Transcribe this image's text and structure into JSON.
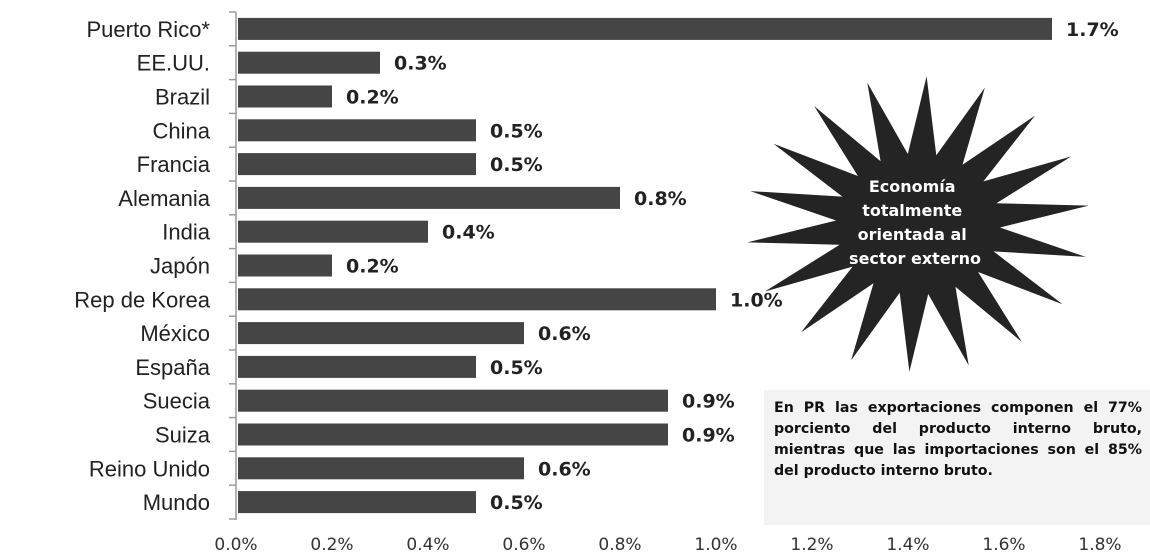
{
  "chart_data": {
    "type": "bar",
    "orientation": "horizontal",
    "categories": [
      "Puerto Rico*",
      "EE.UU.",
      "Brazil",
      "China",
      "Francia",
      "Alemania",
      "India",
      "Japón",
      "Rep de Korea",
      "México",
      "España",
      "Suecia",
      "Suiza",
      "Reino Unido",
      "Mundo"
    ],
    "values": [
      1.7,
      0.3,
      0.2,
      0.5,
      0.5,
      0.8,
      0.4,
      0.2,
      1.0,
      0.6,
      0.5,
      0.9,
      0.9,
      0.6,
      0.5
    ],
    "value_labels": [
      "1.7%",
      "0.3%",
      "0.2%",
      "0.5%",
      "0.5%",
      "0.8%",
      "0.4%",
      "0.2%",
      "1.0%",
      "0.6%",
      "0.5%",
      "0.9%",
      "0.9%",
      "0.6%",
      "0.5%"
    ],
    "xlim": [
      0,
      1.8
    ],
    "x_ticks": [
      "0.0%",
      "0.2%",
      "0.4%",
      "0.6%",
      "0.8%",
      "1.0%",
      "1.2%",
      "1.4%",
      "1.6%",
      "1.8%"
    ],
    "grid": false,
    "bar_color": "#454545"
  },
  "annotations": {
    "star_lines": [
      "Economía",
      "totalmente",
      "orientada al",
      "sector externo"
    ],
    "note": "En PR las exportaciones componen el 77% porciento del producto interno bruto, mientras que las importaciones son el 85% del producto interno bruto."
  }
}
